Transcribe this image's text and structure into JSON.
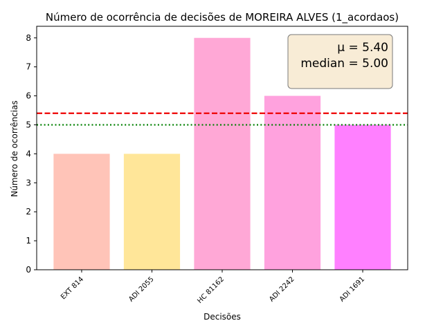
{
  "chart_data": {
    "type": "bar",
    "title": "Número de ocorrência de decisões de MOREIRA ALVES (1_acordaos)",
    "xlabel": "Decisões",
    "ylabel": "Número de ocorrências",
    "categories": [
      "EXT 814",
      "ADI 2055",
      "HC 81162",
      "ADI 2242",
      "ADI 1691"
    ],
    "values": [
      4,
      4,
      8,
      6,
      5
    ],
    "colors": [
      "#ffc4b8",
      "#ffe699",
      "#ffa8d6",
      "#ffa2de",
      "#ff80ff"
    ],
    "ylim": [
      0,
      8.4
    ],
    "yticks": [
      0,
      1,
      2,
      3,
      4,
      5,
      6,
      7,
      8
    ],
    "reference_lines": [
      {
        "label": "mean",
        "value": 5.4,
        "color": "#ee0000",
        "style": "dashed"
      },
      {
        "label": "median",
        "value": 5.0,
        "color": "#008000",
        "style": "dotted"
      }
    ],
    "stats_box": {
      "mean_text": "μ = 5.40",
      "median_text": "median = 5.00",
      "background": "#f8ecd6"
    }
  }
}
